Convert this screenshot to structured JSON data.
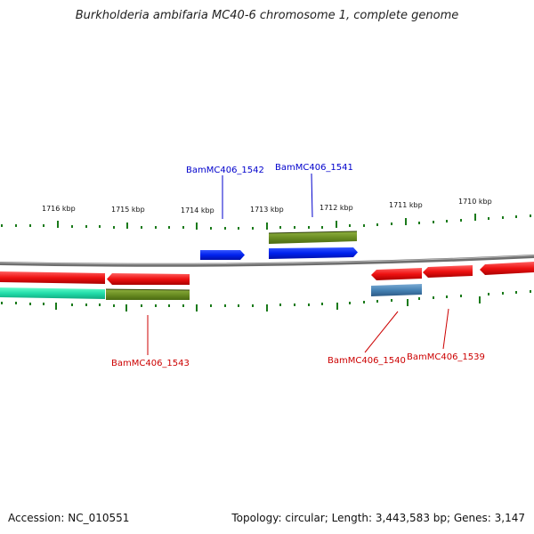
{
  "title": "Burkholderia ambifaria MC40-6 chromosome 1, complete genome",
  "footer": {
    "accession": "Accession: NC_010551",
    "summary": "Topology: circular; Length: 3,443,583 bp; Genes: 3,147"
  },
  "colors": {
    "backbone": "#7f7f7f",
    "tick": "#1a7a1a",
    "label_blue": "#0000cc",
    "label_red": "#cc0000",
    "feature_blue": "#0022ee",
    "feature_red": "#ee1111",
    "feature_olive": "#6b8e23",
    "feature_teal": "#22ddaa",
    "feature_steel": "#4682b4"
  },
  "ticks_kbp": [
    "1716 kbp",
    "1715 kbp",
    "1714 kbp",
    "1713 kbp",
    "1712 kbp",
    "1711 kbp",
    "1710 kbp"
  ],
  "gene_labels": [
    "BamMC406_1542",
    "BamMC406_1541",
    "BamMC406_1543",
    "BamMC406_1540",
    "BamMC406_1539"
  ]
}
